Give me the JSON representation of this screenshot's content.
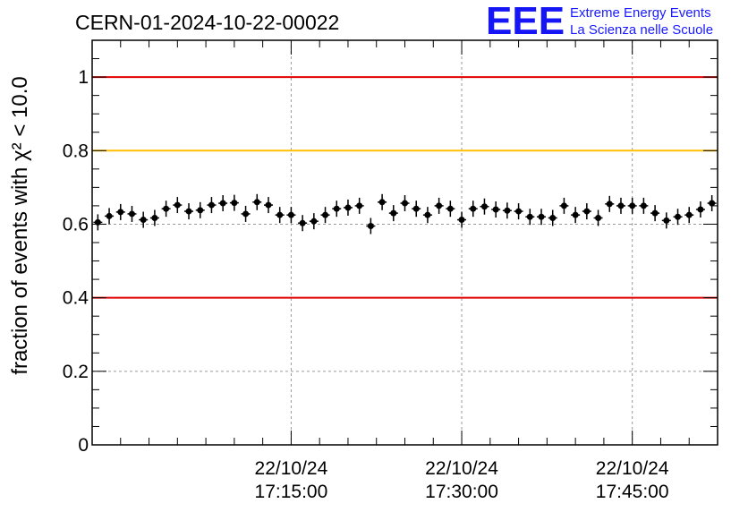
{
  "chart_data": {
    "type": "scatter",
    "title": "CERN-01-2024-10-22-00022",
    "ylabel": "fraction of events with χ² < 10.0",
    "xlabel": "",
    "ylim": [
      0,
      1.1
    ],
    "yticks": [
      "0",
      "0.2",
      "0.4",
      "0.6",
      "0.8",
      "1"
    ],
    "ytick_values": [
      0,
      0.2,
      0.4,
      0.6,
      0.8,
      1.0
    ],
    "xticks": [
      {
        "date": "22/10/24",
        "time": "17:15:00",
        "minutes": 17.5
      },
      {
        "date": "22/10/24",
        "time": "17:30:00",
        "minutes": 32.5
      },
      {
        "date": "22/10/24",
        "time": "17:45:00",
        "minutes": 47.5
      }
    ],
    "xlim_minutes": [
      0,
      55
    ],
    "grid": true,
    "reference_lines": [
      {
        "y": 1.0,
        "color": "#e00000"
      },
      {
        "y": 0.8,
        "color": "#ffc000"
      },
      {
        "y": 0.4,
        "color": "#e00000"
      }
    ],
    "marker_color": "#000000",
    "series": [
      {
        "values": [
          0.605,
          0.622,
          0.633,
          0.628,
          0.612,
          0.617,
          0.642,
          0.652,
          0.635,
          0.638,
          0.652,
          0.657,
          0.658,
          0.628,
          0.66,
          0.652,
          0.625,
          0.625,
          0.603,
          0.608,
          0.625,
          0.642,
          0.645,
          0.65,
          0.595,
          0.66,
          0.63,
          0.657,
          0.642,
          0.625,
          0.65,
          0.642,
          0.612,
          0.642,
          0.648,
          0.64,
          0.637,
          0.635,
          0.62,
          0.62,
          0.617,
          0.65,
          0.625,
          0.635,
          0.617,
          0.655,
          0.65,
          0.65,
          0.65,
          0.63,
          0.61,
          0.62,
          0.625,
          0.64,
          0.657
        ]
      }
    ]
  },
  "logo": {
    "mark": "EEE",
    "line1": "Extreme Energy Events",
    "line2": "La Scienza nelle Scuole"
  }
}
